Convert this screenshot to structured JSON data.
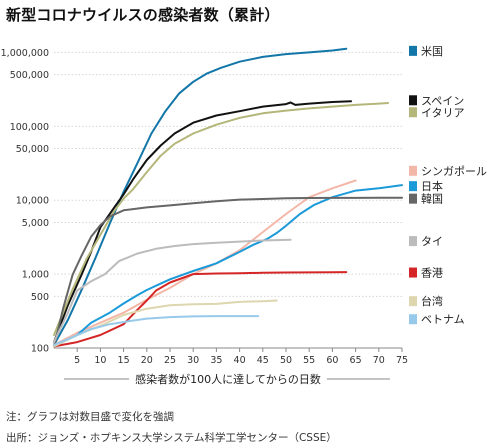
{
  "title": "新型コロナウイルスの感染者数（累計）",
  "chart_data": {
    "type": "line",
    "yscale": "log",
    "xlabel": "感染者数が100人に達してからの日数",
    "ylabel": "",
    "xlim": [
      0,
      75
    ],
    "ylim": [
      100,
      1300000
    ],
    "xticks": [
      5,
      10,
      15,
      20,
      25,
      30,
      35,
      40,
      45,
      50,
      55,
      60,
      65,
      70,
      75
    ],
    "yticks": [
      {
        "value": 100,
        "label": "100"
      },
      {
        "value": 500,
        "label": "500"
      },
      {
        "value": 1000,
        "label": "1,000"
      },
      {
        "value": 5000,
        "label": "5,000"
      },
      {
        "value": 10000,
        "label": "10,000"
      },
      {
        "value": 50000,
        "label": "50,000"
      },
      {
        "value": 100000,
        "label": "100,000"
      },
      {
        "value": 500000,
        "label": "500,000"
      },
      {
        "value": 1000000,
        "label": "1,000,000"
      }
    ],
    "grid": true,
    "legend_position": "right",
    "series": [
      {
        "name": "米国",
        "color": "#1277a8",
        "legend_y": 1050000,
        "points": [
          [
            0,
            110
          ],
          [
            3,
            240
          ],
          [
            6,
            620
          ],
          [
            9,
            1700
          ],
          [
            12,
            4800
          ],
          [
            15,
            13000
          ],
          [
            18,
            32000
          ],
          [
            21,
            80000
          ],
          [
            24,
            160000
          ],
          [
            27,
            280000
          ],
          [
            30,
            400000
          ],
          [
            33,
            520000
          ],
          [
            36,
            620000
          ],
          [
            40,
            750000
          ],
          [
            45,
            870000
          ],
          [
            50,
            950000
          ],
          [
            55,
            1000000
          ],
          [
            60,
            1060000
          ],
          [
            63,
            1120000
          ]
        ]
      },
      {
        "name": "スペイン",
        "color": "#111111",
        "legend_y": 225000,
        "points": [
          [
            0,
            120
          ],
          [
            3,
            380
          ],
          [
            6,
            1000
          ],
          [
            8,
            2000
          ],
          [
            10,
            4300
          ],
          [
            13,
            8000
          ],
          [
            15,
            12000
          ],
          [
            17,
            19000
          ],
          [
            20,
            35000
          ],
          [
            23,
            55000
          ],
          [
            26,
            80000
          ],
          [
            30,
            112000
          ],
          [
            35,
            140000
          ],
          [
            40,
            160000
          ],
          [
            45,
            185000
          ],
          [
            50,
            200000
          ],
          [
            51,
            210000
          ],
          [
            52,
            195000
          ],
          [
            55,
            203000
          ],
          [
            60,
            213000
          ],
          [
            64,
            218000
          ]
        ]
      },
      {
        "name": "イタリア",
        "color": "#b5b67a",
        "legend_y": 155000,
        "points": [
          [
            0,
            150
          ],
          [
            4,
            620
          ],
          [
            7,
            1600
          ],
          [
            10,
            3400
          ],
          [
            13,
            7200
          ],
          [
            15,
            10500
          ],
          [
            17,
            14000
          ],
          [
            20,
            24000
          ],
          [
            23,
            40000
          ],
          [
            26,
            58000
          ],
          [
            30,
            80000
          ],
          [
            35,
            105000
          ],
          [
            40,
            130000
          ],
          [
            45,
            150000
          ],
          [
            50,
            163000
          ],
          [
            55,
            175000
          ],
          [
            60,
            185000
          ],
          [
            65,
            195000
          ],
          [
            70,
            203000
          ],
          [
            72,
            207000
          ]
        ]
      },
      {
        "name": "シンガポール",
        "color": "#f3b7a8",
        "legend_y": 25000,
        "points": [
          [
            0,
            110
          ],
          [
            5,
            160
          ],
          [
            10,
            220
          ],
          [
            15,
            300
          ],
          [
            20,
            450
          ],
          [
            25,
            650
          ],
          [
            30,
            1000
          ],
          [
            35,
            1400
          ],
          [
            40,
            2100
          ],
          [
            45,
            3700
          ],
          [
            50,
            6500
          ],
          [
            55,
            11000
          ],
          [
            60,
            14500
          ],
          [
            65,
            18500
          ]
        ]
      },
      {
        "name": "日本",
        "color": "#1b9ad9",
        "legend_y": 15500,
        "points": [
          [
            0,
            105
          ],
          [
            5,
            150
          ],
          [
            8,
            220
          ],
          [
            12,
            300
          ],
          [
            15,
            400
          ],
          [
            18,
            520
          ],
          [
            20,
            610
          ],
          [
            25,
            850
          ],
          [
            30,
            1100
          ],
          [
            35,
            1400
          ],
          [
            40,
            2000
          ],
          [
            43,
            2500
          ],
          [
            46,
            3000
          ],
          [
            48,
            3600
          ],
          [
            50,
            4500
          ],
          [
            53,
            6500
          ],
          [
            56,
            8600
          ],
          [
            60,
            11000
          ],
          [
            65,
            13500
          ],
          [
            70,
            14500
          ],
          [
            75,
            16000
          ]
        ]
      },
      {
        "name": "韓国",
        "color": "#666666",
        "legend_y": 10500,
        "points": [
          [
            0,
            104
          ],
          [
            2,
            350
          ],
          [
            4,
            980
          ],
          [
            6,
            1800
          ],
          [
            8,
            3200
          ],
          [
            10,
            4600
          ],
          [
            12,
            6000
          ],
          [
            15,
            7300
          ],
          [
            20,
            8000
          ],
          [
            25,
            8500
          ],
          [
            30,
            9100
          ],
          [
            35,
            9700
          ],
          [
            40,
            10200
          ],
          [
            45,
            10400
          ],
          [
            50,
            10600
          ],
          [
            55,
            10700
          ],
          [
            60,
            10750
          ],
          [
            65,
            10750
          ],
          [
            70,
            10800
          ],
          [
            75,
            10800
          ]
        ]
      },
      {
        "name": "タイ",
        "color": "#bcbcbc",
        "legend_y": 2800,
        "points": [
          [
            0,
            120
          ],
          [
            3,
            300
          ],
          [
            5,
            600
          ],
          [
            8,
            800
          ],
          [
            11,
            1000
          ],
          [
            14,
            1500
          ],
          [
            18,
            1900
          ],
          [
            22,
            2200
          ],
          [
            26,
            2400
          ],
          [
            30,
            2550
          ],
          [
            35,
            2650
          ],
          [
            40,
            2750
          ],
          [
            45,
            2850
          ],
          [
            50,
            2900
          ],
          [
            51,
            2920
          ]
        ]
      },
      {
        "name": "香港",
        "color": "#d42626",
        "legend_y": 1050,
        "points": [
          [
            0,
            105
          ],
          [
            5,
            120
          ],
          [
            10,
            150
          ],
          [
            15,
            210
          ],
          [
            18,
            330
          ],
          [
            20,
            440
          ],
          [
            22,
            600
          ],
          [
            25,
            770
          ],
          [
            28,
            900
          ],
          [
            30,
            1000
          ],
          [
            35,
            1020
          ],
          [
            40,
            1030
          ],
          [
            45,
            1040
          ],
          [
            50,
            1050
          ],
          [
            55,
            1055
          ],
          [
            60,
            1060
          ],
          [
            63,
            1065
          ]
        ]
      },
      {
        "name": "台湾",
        "color": "#ddd6ae",
        "legend_y": 430,
        "points": [
          [
            0,
            105
          ],
          [
            5,
            150
          ],
          [
            10,
            200
          ],
          [
            15,
            280
          ],
          [
            20,
            340
          ],
          [
            25,
            380
          ],
          [
            30,
            390
          ],
          [
            35,
            395
          ],
          [
            40,
            420
          ],
          [
            45,
            430
          ],
          [
            48,
            440
          ]
        ]
      },
      {
        "name": "ベトナム",
        "color": "#96c9ea",
        "legend_y": 245,
        "points": [
          [
            0,
            110
          ],
          [
            4,
            140
          ],
          [
            8,
            180
          ],
          [
            12,
            210
          ],
          [
            16,
            230
          ],
          [
            20,
            250
          ],
          [
            25,
            262
          ],
          [
            30,
            268
          ],
          [
            35,
            270
          ],
          [
            40,
            270
          ],
          [
            44,
            270
          ]
        ]
      }
    ]
  },
  "notes": {
    "note": "注：グラフは対数目盛で変化を強調",
    "source": "出所：ジョンズ・ホプキンス大学システム科学工学センター（CSSE）"
  }
}
